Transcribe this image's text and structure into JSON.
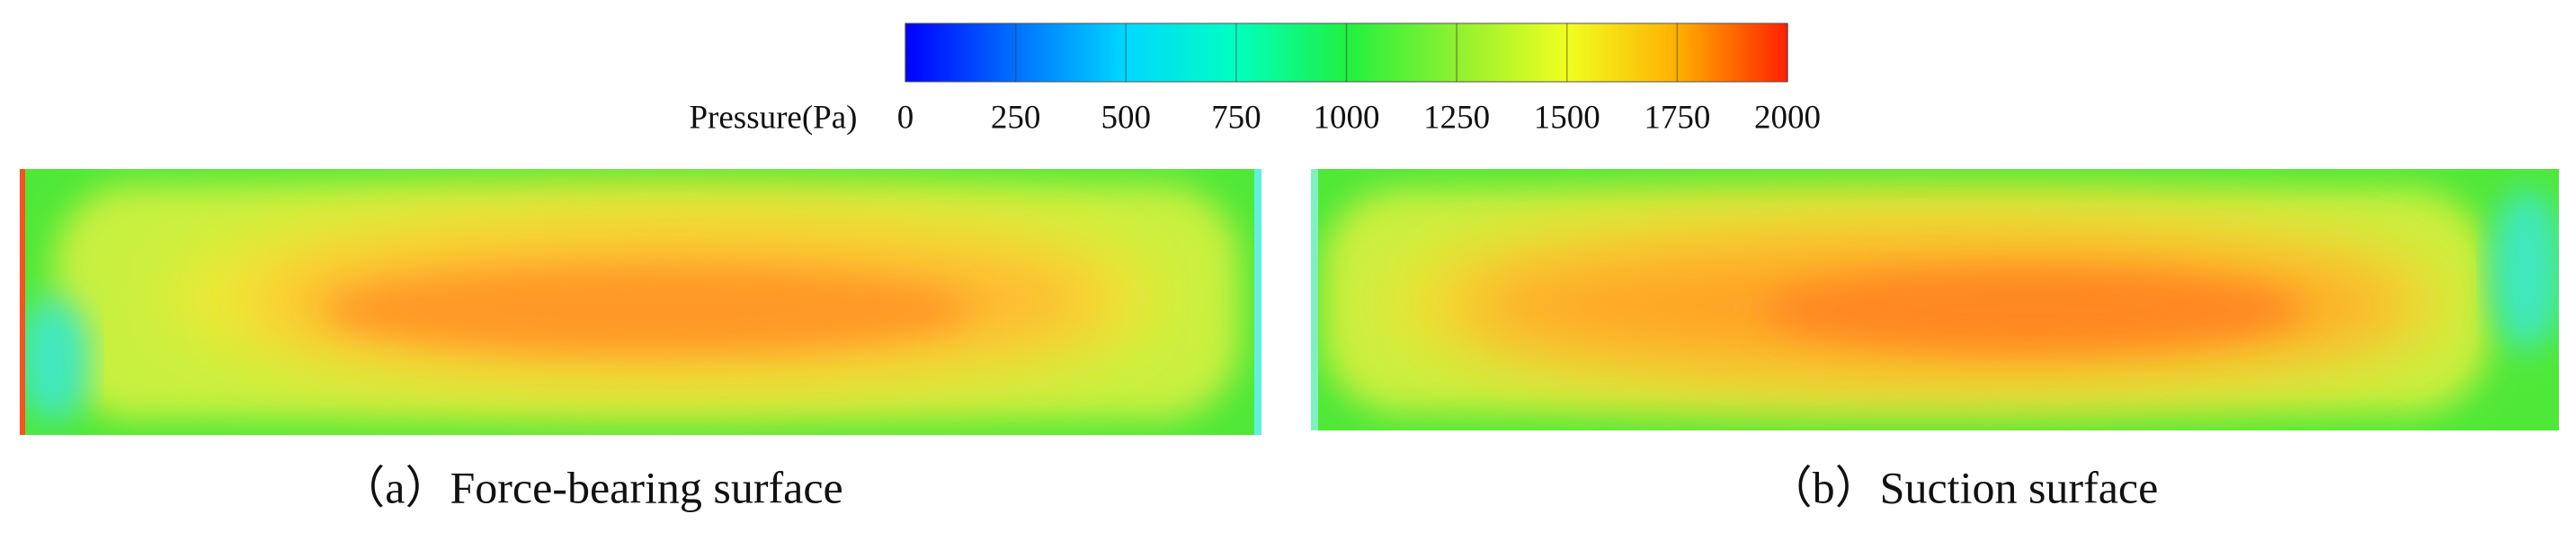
{
  "colorbar": {
    "label": "Pressure(Pa)",
    "range": [
      0,
      2000
    ],
    "ticks": [
      0,
      250,
      500,
      750,
      1000,
      1250,
      1500,
      1750,
      2000
    ]
  },
  "panels": [
    {
      "caption": "（a）Force-bearing surface"
    },
    {
      "caption": "（b）Suction surface"
    }
  ]
}
